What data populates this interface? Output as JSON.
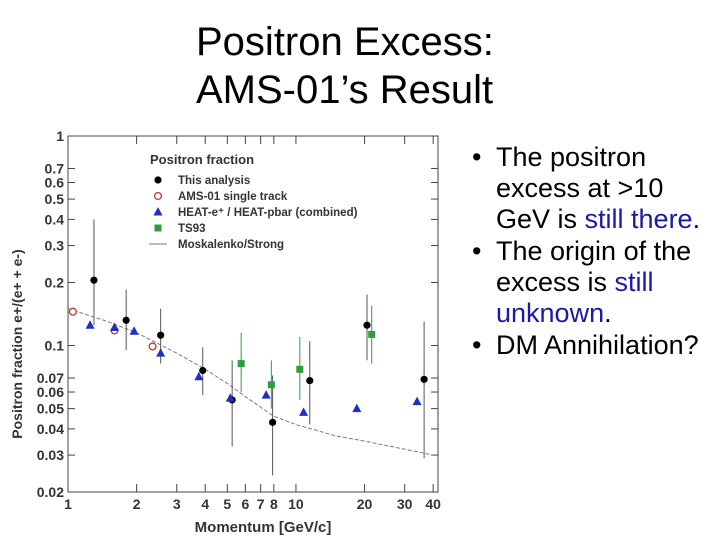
{
  "slide": {
    "title_line1": "Positron Excess:",
    "title_line2": "AMS-01’s Result",
    "bullets": [
      {
        "pre": "The positron excess at >10 GeV is ",
        "hl": "still there",
        "post": "."
      },
      {
        "pre": "The origin of the excess is ",
        "hl": "still unknown",
        "post": "."
      },
      {
        "pre": "DM Annihilation?",
        "hl": "",
        "post": ""
      }
    ],
    "bullet_glyph": "•"
  },
  "chart_data": {
    "type": "scatter",
    "title": "Positron fraction",
    "xlabel": "Momentum  [GeV/c]",
    "ylabel": "Positron fraction  e+/(e+ + e-)",
    "x_scale": "log",
    "y_scale": "log",
    "xlim": [
      1,
      42
    ],
    "ylim": [
      0.02,
      1
    ],
    "x_ticks": [
      1,
      2,
      3,
      4,
      5,
      6,
      7,
      8,
      10,
      20,
      30,
      40
    ],
    "x_tick_labels": [
      "1",
      "2",
      "3",
      "4",
      "5",
      "6",
      "7",
      "8",
      "10",
      "20",
      "30",
      "40"
    ],
    "y_ticks": [
      0.02,
      0.03,
      0.04,
      0.05,
      0.06,
      0.07,
      0.1,
      0.2,
      0.3,
      0.4,
      0.5,
      0.6,
      0.7,
      1
    ],
    "y_tick_labels": [
      "0.02",
      "0.03",
      "0.04",
      "0.05",
      "0.06",
      "0.07",
      "0.1",
      "0.2",
      "0.3",
      "0.4",
      "0.5",
      "0.6",
      "0.7",
      "1"
    ],
    "legend_position": "top-left",
    "series": [
      {
        "name": "This analysis",
        "marker": "circle-filled",
        "color": "#000000",
        "points": [
          {
            "x": 1.3,
            "y": 0.205,
            "lo": 0.125,
            "hi": 0.4
          },
          {
            "x": 1.8,
            "y": 0.132,
            "lo": 0.095,
            "hi": 0.185
          },
          {
            "x": 2.55,
            "y": 0.112,
            "lo": 0.082,
            "hi": 0.15
          },
          {
            "x": 3.9,
            "y": 0.076,
            "lo": 0.058,
            "hi": 0.098
          },
          {
            "x": 5.25,
            "y": 0.055,
            "lo": 0.033,
            "hi": 0.085
          },
          {
            "x": 7.9,
            "y": 0.043,
            "lo": 0.024,
            "hi": 0.072
          },
          {
            "x": 11.5,
            "y": 0.068,
            "lo": 0.042,
            "hi": 0.105
          },
          {
            "x": 20.5,
            "y": 0.125,
            "lo": 0.085,
            "hi": 0.175
          },
          {
            "x": 36.5,
            "y": 0.069,
            "lo": 0.029,
            "hi": 0.13
          }
        ]
      },
      {
        "name": "AMS-01 single track",
        "marker": "circle-open",
        "color": "#c0392b",
        "points": [
          {
            "x": 1.05,
            "y": 0.145
          },
          {
            "x": 1.6,
            "y": 0.118
          },
          {
            "x": 2.35,
            "y": 0.099
          }
        ]
      },
      {
        "name": "HEAT-e⁺ / HEAT-pbar (combined)",
        "marker": "triangle",
        "color": "#1f2fbf",
        "points": [
          {
            "x": 1.25,
            "y": 0.125
          },
          {
            "x": 1.6,
            "y": 0.122
          },
          {
            "x": 1.95,
            "y": 0.117
          },
          {
            "x": 2.55,
            "y": 0.092
          },
          {
            "x": 3.75,
            "y": 0.071
          },
          {
            "x": 5.15,
            "y": 0.056
          },
          {
            "x": 7.4,
            "y": 0.058
          },
          {
            "x": 10.8,
            "y": 0.048
          },
          {
            "x": 18.5,
            "y": 0.05
          },
          {
            "x": 34.0,
            "y": 0.054
          }
        ]
      },
      {
        "name": "TS93",
        "marker": "square",
        "color": "#2e9e3a",
        "points": [
          {
            "x": 5.75,
            "y": 0.082,
            "lo": 0.06,
            "hi": 0.115
          },
          {
            "x": 7.8,
            "y": 0.065,
            "lo": 0.05,
            "hi": 0.085
          },
          {
            "x": 10.4,
            "y": 0.077,
            "lo": 0.055,
            "hi": 0.11
          },
          {
            "x": 21.5,
            "y": 0.113,
            "lo": 0.082,
            "hi": 0.155
          }
        ]
      },
      {
        "name": "Moskalenko/Strong",
        "marker": "line",
        "color": "#7a7a7a",
        "points": [
          {
            "x": 1.0,
            "y": 0.15
          },
          {
            "x": 1.5,
            "y": 0.13
          },
          {
            "x": 2.0,
            "y": 0.115
          },
          {
            "x": 3.0,
            "y": 0.092
          },
          {
            "x": 4.0,
            "y": 0.077
          },
          {
            "x": 5.0,
            "y": 0.066
          },
          {
            "x": 6.0,
            "y": 0.057
          },
          {
            "x": 8.0,
            "y": 0.046
          },
          {
            "x": 10.0,
            "y": 0.042
          },
          {
            "x": 15.0,
            "y": 0.037
          },
          {
            "x": 20.0,
            "y": 0.035
          },
          {
            "x": 30.0,
            "y": 0.032
          },
          {
            "x": 40.0,
            "y": 0.03
          }
        ]
      }
    ]
  }
}
